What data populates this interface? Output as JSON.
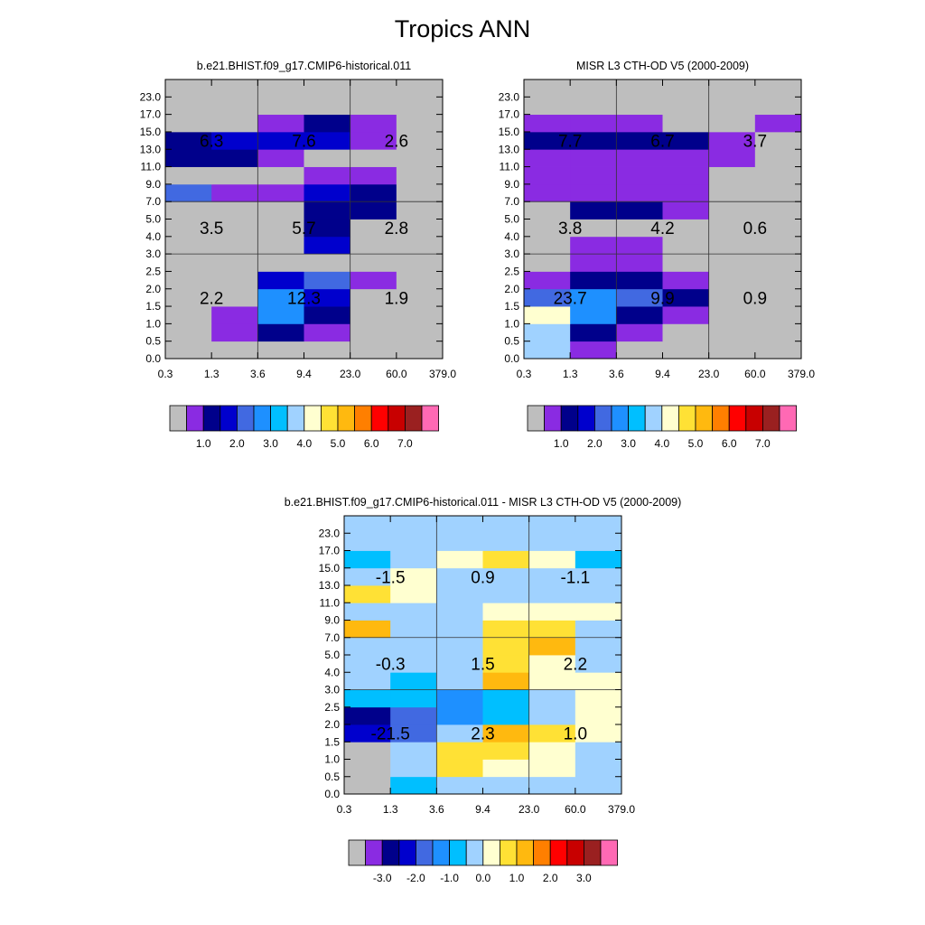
{
  "page": {
    "title": "Tropics ANN"
  },
  "colors": {
    "model_obs_palette": [
      "#bebebe",
      "#8a2be2",
      "#00008b",
      "#0000cd",
      "#4169e1",
      "#1e90ff",
      "#00bfff",
      "#a0d2ff",
      "#ffffd0",
      "#ffe135",
      "#ffb90f",
      "#ff7f00",
      "#ff0000",
      "#c80000",
      "#9a2020",
      "#ff69b4"
    ],
    "diff_palette": [
      "#bebebe",
      "#8a2be2",
      "#00008b",
      "#0000cd",
      "#4169e1",
      "#1e90ff",
      "#00bfff",
      "#a0d2ff",
      "#ffffd0",
      "#ffe135",
      "#ffb90f",
      "#ff7f00",
      "#ff0000",
      "#c80000",
      "#9a2020",
      "#ff69b4"
    ],
    "grid_line": "#333333"
  },
  "chart_data": [
    {
      "type": "heatmap",
      "title": "b.e21.BHIST.f09_g17.CMIP6-historical.011",
      "x_tick_labels": [
        "0.3",
        "1.3",
        "3.6",
        "9.4",
        "23.0",
        "60.0",
        "379.0"
      ],
      "y_tick_labels": [
        "0.0",
        "0.5",
        "1.0",
        "1.5",
        "2.0",
        "2.5",
        "3.0",
        "4.0",
        "5.0",
        "7.0",
        "9.0",
        "11.0",
        "13.0",
        "15.0",
        "17.0",
        "23.0"
      ],
      "cell_color_index_rows_bottom_to_top": [
        [
          0,
          0,
          0,
          0,
          0,
          0
        ],
        [
          0,
          1,
          2,
          1,
          0,
          0
        ],
        [
          0,
          1,
          5,
          2,
          0,
          0
        ],
        [
          0,
          0,
          5,
          3,
          0,
          0
        ],
        [
          0,
          0,
          3,
          4,
          1,
          0
        ],
        [
          0,
          0,
          0,
          0,
          0,
          0
        ],
        [
          0,
          0,
          0,
          3,
          0,
          0
        ],
        [
          0,
          0,
          0,
          2,
          0,
          0
        ],
        [
          0,
          0,
          0,
          2,
          2,
          0
        ],
        [
          4,
          1,
          1,
          3,
          2,
          0
        ],
        [
          0,
          0,
          0,
          1,
          1,
          0
        ],
        [
          2,
          2,
          1,
          0,
          0,
          0
        ],
        [
          2,
          3,
          3,
          3,
          1,
          0
        ],
        [
          0,
          0,
          1,
          2,
          1,
          0
        ],
        [
          0,
          0,
          0,
          0,
          0,
          0
        ],
        [
          0,
          0,
          0,
          0,
          0,
          0
        ]
      ],
      "block_labels": {
        "columns": [
          {
            "x_range": [
              "0.3",
              "3.6"
            ],
            "low": "2.2",
            "middle": "3.5",
            "high": "6.3"
          },
          {
            "x_range": [
              "3.6",
              "23.0"
            ],
            "low": "12.3",
            "middle": "5.7",
            "high": "7.6"
          },
          {
            "x_range": [
              "23.0",
              "379.0"
            ],
            "low": "1.9",
            "middle": "2.8",
            "high": "2.6"
          }
        ]
      },
      "colorbar": {
        "tick_labels": [
          "1.0",
          "2.0",
          "3.0",
          "4.0",
          "5.0",
          "6.0",
          "7.0"
        ],
        "palette": "model_obs_palette"
      }
    },
    {
      "type": "heatmap",
      "title": "MISR L3 CTH-OD V5 (2000-2009)",
      "x_tick_labels": [
        "0.3",
        "1.3",
        "3.6",
        "9.4",
        "23.0",
        "60.0",
        "379.0"
      ],
      "y_tick_labels": [
        "0.0",
        "0.5",
        "1.0",
        "1.5",
        "2.0",
        "2.5",
        "3.0",
        "4.0",
        "5.0",
        "7.0",
        "9.0",
        "11.0",
        "13.0",
        "15.0",
        "17.0",
        "23.0"
      ],
      "cell_color_index_rows_bottom_to_top": [
        [
          7,
          1,
          0,
          0,
          0,
          0
        ],
        [
          7,
          2,
          1,
          0,
          0,
          0
        ],
        [
          8,
          5,
          2,
          1,
          0,
          0
        ],
        [
          4,
          5,
          4,
          2,
          0,
          0
        ],
        [
          1,
          2,
          2,
          1,
          0,
          0
        ],
        [
          0,
          1,
          1,
          0,
          0,
          0
        ],
        [
          0,
          1,
          1,
          0,
          0,
          0
        ],
        [
          0,
          0,
          0,
          0,
          0,
          0
        ],
        [
          0,
          2,
          2,
          1,
          0,
          0
        ],
        [
          1,
          1,
          1,
          1,
          0,
          0
        ],
        [
          1,
          1,
          1,
          1,
          0,
          0
        ],
        [
          1,
          1,
          1,
          1,
          1,
          0
        ],
        [
          2,
          2,
          2,
          2,
          1,
          0
        ],
        [
          1,
          1,
          1,
          0,
          0,
          1
        ],
        [
          0,
          0,
          0,
          0,
          0,
          0
        ],
        [
          0,
          0,
          0,
          0,
          0,
          0
        ]
      ],
      "block_labels": {
        "columns": [
          {
            "x_range": [
              "0.3",
              "3.6"
            ],
            "low": "23.7",
            "middle": "3.8",
            "high": "7.7"
          },
          {
            "x_range": [
              "3.6",
              "23.0"
            ],
            "low": "9.9",
            "middle": "4.2",
            "high": "6.7"
          },
          {
            "x_range": [
              "23.0",
              "379.0"
            ],
            "low": "0.9",
            "middle": "0.6",
            "high": "3.7"
          }
        ]
      },
      "colorbar": {
        "tick_labels": [
          "1.0",
          "2.0",
          "3.0",
          "4.0",
          "5.0",
          "6.0",
          "7.0"
        ],
        "palette": "model_obs_palette"
      }
    },
    {
      "type": "heatmap",
      "title": "b.e21.BHIST.f09_g17.CMIP6-historical.011 - MISR L3 CTH-OD V5 (2000-2009)",
      "x_tick_labels": [
        "0.3",
        "1.3",
        "3.6",
        "9.4",
        "23.0",
        "60.0",
        "379.0"
      ],
      "y_tick_labels": [
        "0.0",
        "0.5",
        "1.0",
        "1.5",
        "2.0",
        "2.5",
        "3.0",
        "4.0",
        "5.0",
        "7.0",
        "9.0",
        "11.0",
        "13.0",
        "15.0",
        "17.0",
        "23.0"
      ],
      "cell_color_index_rows_bottom_to_top": [
        [
          0,
          6,
          7,
          7,
          7,
          7
        ],
        [
          0,
          7,
          9,
          8,
          8,
          7
        ],
        [
          0,
          7,
          9,
          9,
          8,
          7
        ],
        [
          3,
          4,
          7,
          10,
          9,
          8
        ],
        [
          2,
          4,
          5,
          6,
          7,
          8
        ],
        [
          6,
          6,
          5,
          6,
          7,
          8
        ],
        [
          7,
          6,
          7,
          10,
          8,
          8
        ],
        [
          7,
          7,
          7,
          9,
          8,
          7
        ],
        [
          7,
          7,
          7,
          9,
          10,
          7
        ],
        [
          10,
          7,
          7,
          9,
          9,
          7
        ],
        [
          7,
          7,
          7,
          8,
          8,
          8
        ],
        [
          9,
          8,
          7,
          7,
          7,
          7
        ],
        [
          7,
          8,
          7,
          7,
          7,
          7
        ],
        [
          6,
          7,
          8,
          9,
          8,
          6
        ],
        [
          7,
          7,
          7,
          7,
          7,
          7
        ],
        [
          7,
          7,
          7,
          7,
          7,
          7
        ]
      ],
      "block_labels": {
        "columns": [
          {
            "x_range": [
              "0.3",
              "3.6"
            ],
            "low": "-21.5",
            "middle": "-0.3",
            "high": "-1.5"
          },
          {
            "x_range": [
              "3.6",
              "23.0"
            ],
            "low": "2.3",
            "middle": "1.5",
            "high": "0.9"
          },
          {
            "x_range": [
              "23.0",
              "379.0"
            ],
            "low": "1.0",
            "middle": "2.2",
            "high": "-1.1"
          }
        ]
      },
      "colorbar": {
        "tick_labels": [
          "-3.0",
          "-2.0",
          "-1.0",
          "0.0",
          "1.0",
          "2.0",
          "3.0"
        ],
        "palette": "diff_palette"
      }
    }
  ]
}
